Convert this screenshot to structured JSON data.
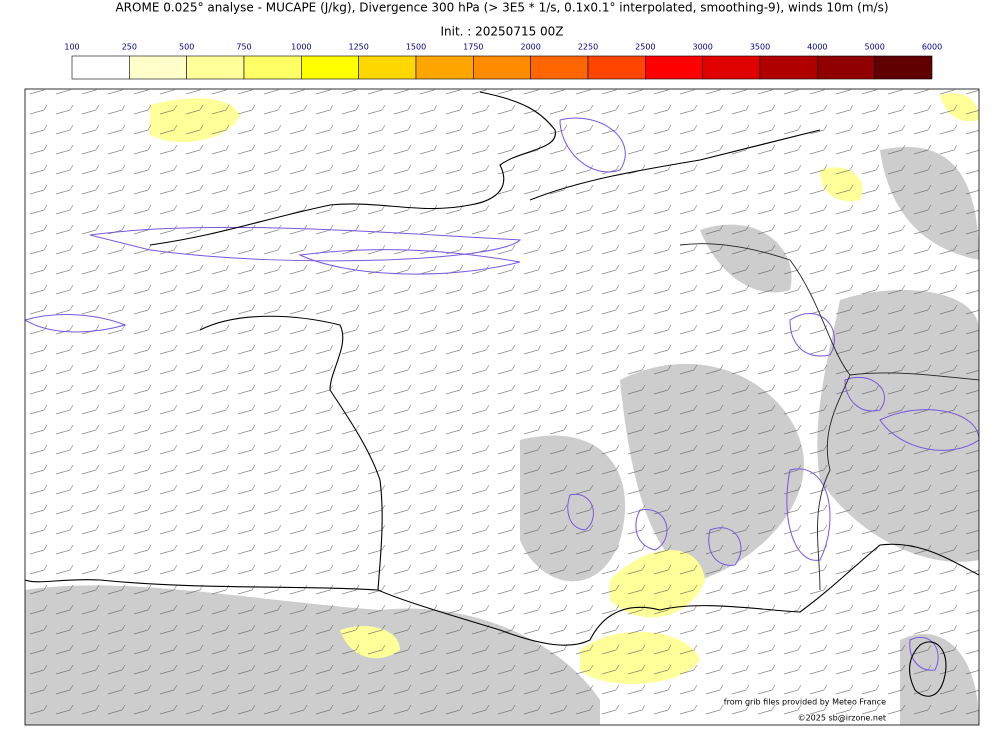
{
  "title": "AROME 0.025° analyse - MUCAPE (J/kg), Divergence 300 hPa (> 3E5 * 1/s, 0.1x0.1° interpolated, smoothing-9), winds 10m (m/s)",
  "subtitle": "Init. : 20250715 00Z",
  "legend": {
    "ticks": [
      100,
      250,
      500,
      750,
      1000,
      1250,
      1500,
      1750,
      2000,
      2250,
      2500,
      3000,
      3500,
      4000,
      5000,
      6000
    ],
    "colors": [
      "#ffffff",
      "#ffffcc",
      "#ffff99",
      "#ffff66",
      "#ffff00",
      "#ffd700",
      "#ffa500",
      "#ff8c00",
      "#ff6600",
      "#ff4500",
      "#ff0000",
      "#e00000",
      "#b00000",
      "#900000",
      "#600000"
    ]
  },
  "credits": [
    "from grib files provided by Meteo France",
    "©2025 sb@irzone.net"
  ]
}
